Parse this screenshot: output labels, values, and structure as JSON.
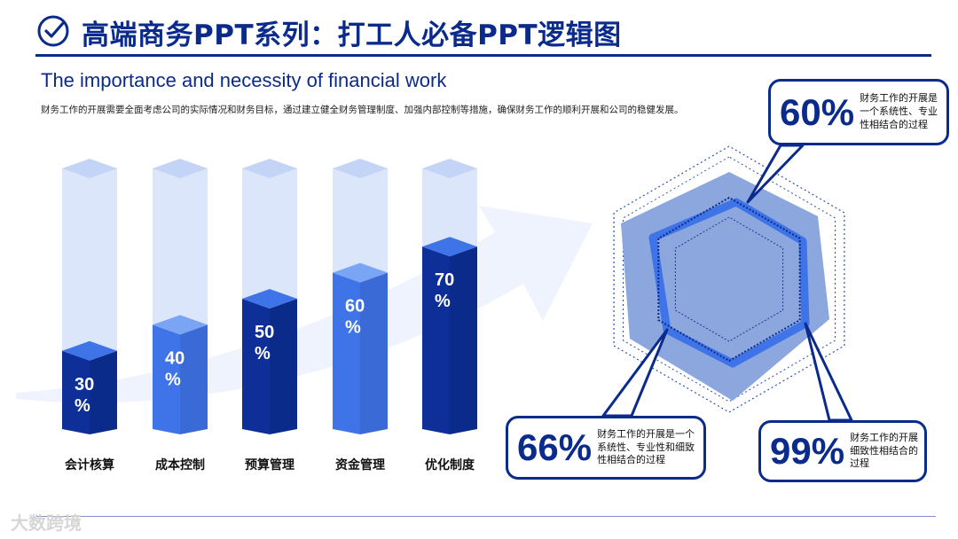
{
  "header": {
    "title": "高端商务PPT系列：打工人必备PPT逻辑图",
    "subtitle": "The importance and necessity of financial work",
    "description": "财务工作的开展需要全面考虑公司的实际情况和财务目标，通过建立健全财务管理制度、加强内部控制等措施，确保财务工作的顺利开展和公司的稳健发展。"
  },
  "colors": {
    "primary": "#0a2b8c",
    "dark_bar": "#0d2f97",
    "light_bar": "#3f74e8",
    "bar_track": "#dbe6fb",
    "arrow": "#eef3fd"
  },
  "chart_data": [
    {
      "type": "bar",
      "categories": [
        "会计核算",
        "成本控制",
        "预算管理",
        "资金管理",
        "优化制度"
      ],
      "values": [
        30,
        40,
        50,
        60,
        70
      ],
      "value_labels": [
        "30 %",
        "40 %",
        "50 %",
        "60 %",
        "70 %"
      ],
      "ylim": [
        0,
        100
      ],
      "title": "",
      "xlabel": "",
      "ylabel": ""
    },
    {
      "type": "radar",
      "series_values": [
        "60%",
        "66%",
        "99%"
      ],
      "callouts": [
        {
          "value": "60%",
          "text": "财务工作的开展是一个系统性、专业性相结合的过程"
        },
        {
          "value": "66%",
          "text": "财务工作的开展是一个系统性、专业性和细致性相结合的过程"
        },
        {
          "value": "99%",
          "text": "财务工作的开展细致性相结合的过程"
        }
      ]
    }
  ],
  "watermark": "大数跨境"
}
